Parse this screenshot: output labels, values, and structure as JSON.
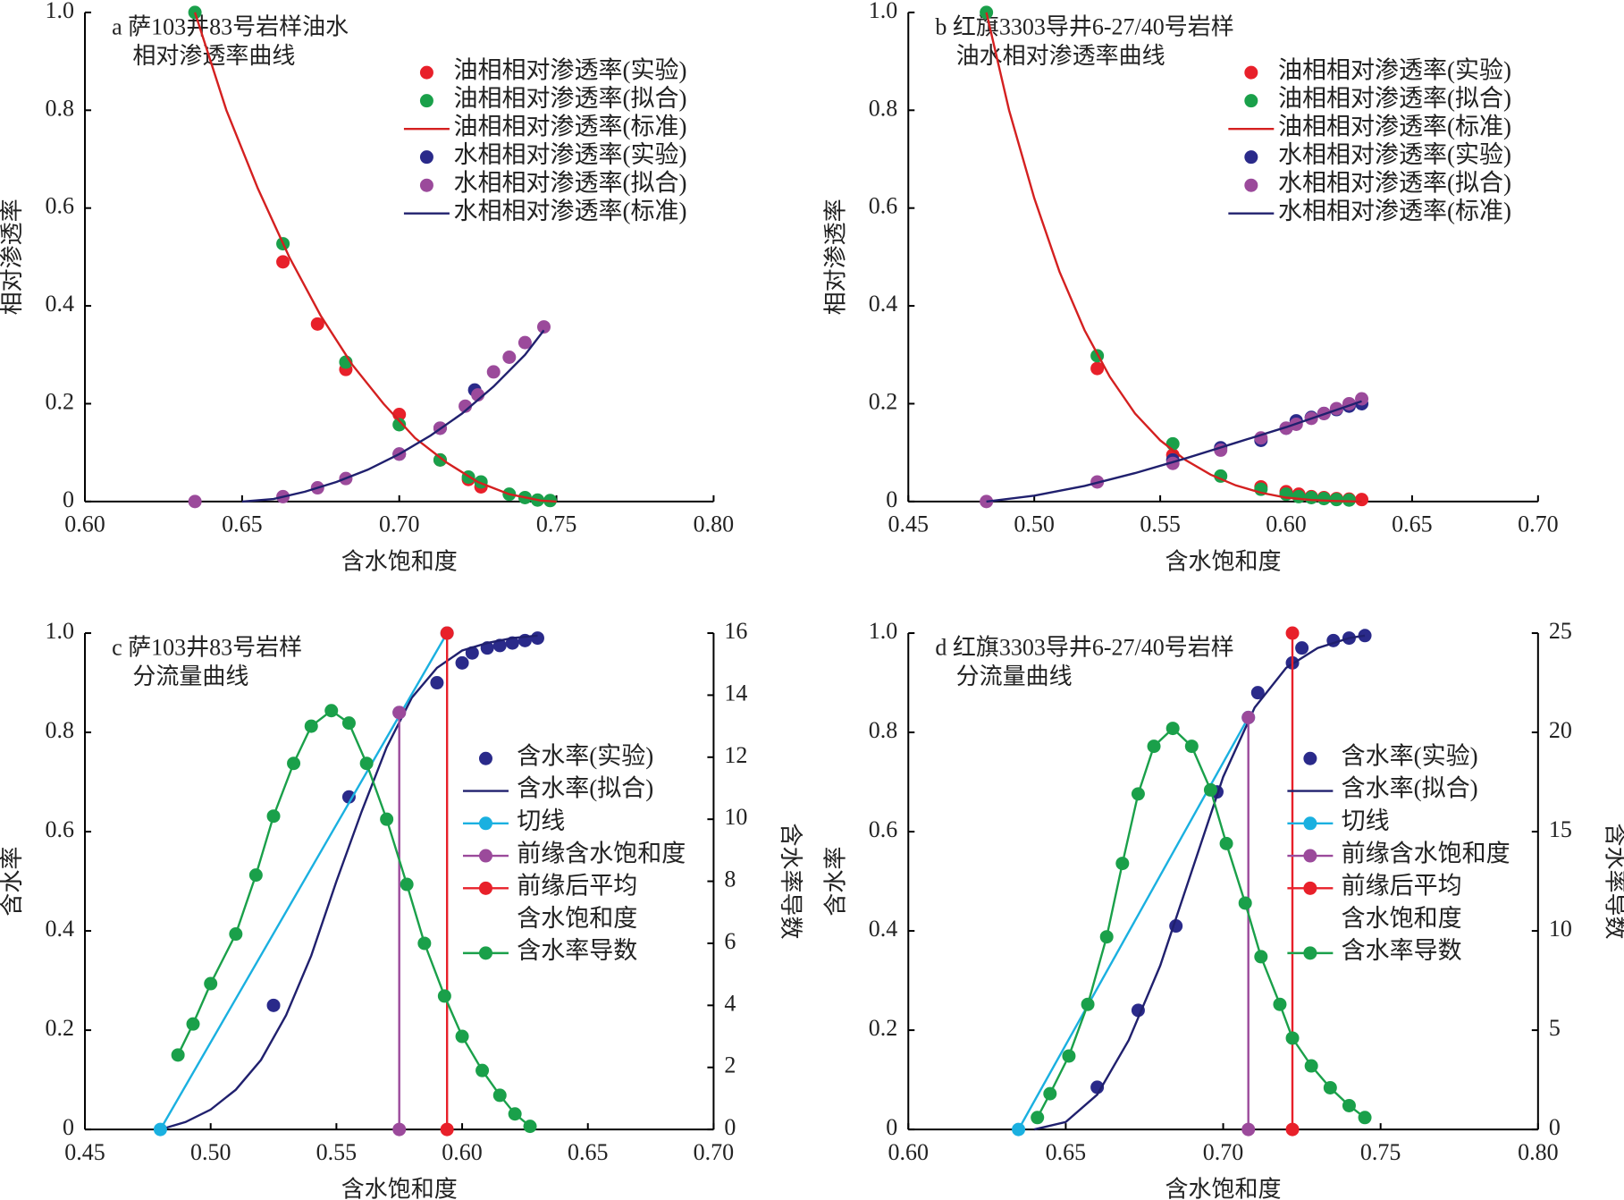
{
  "chart_data": [
    {
      "type": "line",
      "title": [
        "a 萨103井83号岩样油水",
        "相对渗透率曲线"
      ],
      "xlabel": "含水饱和度",
      "ylabel": "相对渗透率",
      "legend": "upper right",
      "xlim": [
        0.6,
        0.8
      ],
      "xticks": [
        {
          "value": 0.6,
          "label": "0.60"
        },
        0.65,
        {
          "value": 0.7,
          "label": "0.70"
        },
        0.75,
        {
          "value": 0.8,
          "label": "0.80"
        }
      ],
      "ylim": [
        0,
        1.0
      ],
      "yticks": [
        0,
        0.2,
        0.4,
        0.6,
        0.8,
        {
          "value": 1.0,
          "label": "1.0"
        }
      ],
      "series": [
        {
          "name": "油相相对渗透率(实验)",
          "color": "#e8202a",
          "marker": true,
          "line": false,
          "x": [
            0.663,
            0.674,
            0.683,
            0.7,
            0.713,
            0.722,
            0.726
          ],
          "values": [
            0.49,
            0.363,
            0.27,
            0.178,
            0.085,
            0.045,
            0.03
          ]
        },
        {
          "name": "油相相对渗透率(拟合)",
          "color": "#1aa04a",
          "marker": true,
          "line": false,
          "x": [
            0.635,
            0.663,
            0.683,
            0.7,
            0.713,
            0.722,
            0.726,
            0.735,
            0.74,
            0.744,
            0.748
          ],
          "values": [
            1.0,
            0.527,
            0.285,
            0.157,
            0.085,
            0.05,
            0.04,
            0.015,
            0.008,
            0.003,
            0.002
          ]
        },
        {
          "name": "油相相对渗透率(标准)",
          "color": "#d42020",
          "marker": false,
          "line": true,
          "x": [
            0.635,
            0.645,
            0.655,
            0.665,
            0.675,
            0.685,
            0.695,
            0.705,
            0.715,
            0.725,
            0.735,
            0.745,
            0.75
          ],
          "values": [
            1.0,
            0.8,
            0.64,
            0.5,
            0.38,
            0.28,
            0.2,
            0.13,
            0.08,
            0.04,
            0.015,
            0.002,
            0
          ]
        },
        {
          "name": "水相相对渗透率(实验)",
          "color": "#2a2a8a",
          "marker": true,
          "line": false,
          "x": [
            0.7,
            0.713,
            0.724
          ],
          "values": [
            0.097,
            0.15,
            0.228
          ]
        },
        {
          "name": "水相相对渗透率(拟合)",
          "color": "#9b4a9b",
          "marker": true,
          "line": false,
          "x": [
            0.635,
            0.663,
            0.674,
            0.683,
            0.7,
            0.713,
            0.721,
            0.725,
            0.73,
            0.735,
            0.74,
            0.746
          ],
          "values": [
            0,
            0.01,
            0.028,
            0.047,
            0.097,
            0.15,
            0.195,
            0.218,
            0.265,
            0.295,
            0.325,
            0.357
          ]
        },
        {
          "name": "水相相对渗透率(标准)",
          "color": "#20206e",
          "marker": false,
          "line": true,
          "x": [
            0.65,
            0.66,
            0.67,
            0.68,
            0.69,
            0.7,
            0.71,
            0.72,
            0.73,
            0.74,
            0.746
          ],
          "values": [
            0,
            0.005,
            0.02,
            0.04,
            0.065,
            0.097,
            0.135,
            0.18,
            0.235,
            0.3,
            0.35
          ]
        }
      ]
    },
    {
      "type": "line",
      "title": [
        "b 红旗3303导井6-27/40号岩样",
        "油水相对渗透率曲线"
      ],
      "xlabel": "含水饱和度",
      "ylabel": "相对渗透率",
      "legend": "upper right",
      "xlim": [
        0.45,
        0.7
      ],
      "xticks": [
        0.45,
        {
          "value": 0.5,
          "label": "0.50"
        },
        0.55,
        {
          "value": 0.6,
          "label": "0.60"
        },
        0.65,
        {
          "value": 0.7,
          "label": "0.70"
        }
      ],
      "ylim": [
        0,
        1.0
      ],
      "yticks": [
        0,
        0.2,
        0.4,
        0.6,
        0.8,
        {
          "value": 1.0,
          "label": "1.0"
        }
      ],
      "series": [
        {
          "name": "油相相对渗透率(实验)",
          "color": "#e8202a",
          "marker": true,
          "line": false,
          "x": [
            0.525,
            0.555,
            0.59,
            0.6,
            0.605,
            0.61,
            0.615,
            0.62,
            0.625,
            0.63
          ],
          "values": [
            0.272,
            0.095,
            0.03,
            0.02,
            0.015,
            0.01,
            0.008,
            0.006,
            0.005,
            0.004
          ]
        },
        {
          "name": "油相相对渗透率(拟合)",
          "color": "#1aa04a",
          "marker": true,
          "line": false,
          "x": [
            0.481,
            0.525,
            0.555,
            0.574,
            0.59,
            0.6,
            0.605,
            0.61,
            0.615,
            0.62,
            0.625
          ],
          "values": [
            1.0,
            0.298,
            0.118,
            0.052,
            0.025,
            0.015,
            0.01,
            0.008,
            0.006,
            0.004,
            0.003
          ]
        },
        {
          "name": "油相相对渗透率(标准)",
          "color": "#d42020",
          "marker": false,
          "line": true,
          "x": [
            0.481,
            0.49,
            0.5,
            0.51,
            0.52,
            0.53,
            0.54,
            0.55,
            0.56,
            0.57,
            0.58,
            0.59,
            0.6,
            0.61,
            0.62,
            0.63
          ],
          "values": [
            1.0,
            0.8,
            0.62,
            0.47,
            0.35,
            0.255,
            0.18,
            0.125,
            0.085,
            0.055,
            0.033,
            0.018,
            0.008,
            0.003,
            0.001,
            0
          ]
        },
        {
          "name": "水相相对渗透率(实验)",
          "color": "#2a2a8a",
          "marker": true,
          "line": false,
          "x": [
            0.555,
            0.574,
            0.59,
            0.6,
            0.604,
            0.61,
            0.615,
            0.62,
            0.625,
            0.63
          ],
          "values": [
            0.085,
            0.11,
            0.125,
            0.15,
            0.165,
            0.172,
            0.18,
            0.188,
            0.195,
            0.2
          ]
        },
        {
          "name": "水相相对渗透率(拟合)",
          "color": "#9b4a9b",
          "marker": true,
          "line": false,
          "x": [
            0.481,
            0.525,
            0.555,
            0.574,
            0.59,
            0.6,
            0.604,
            0.61,
            0.615,
            0.62,
            0.625,
            0.63
          ],
          "values": [
            0,
            0.04,
            0.078,
            0.105,
            0.13,
            0.15,
            0.158,
            0.17,
            0.18,
            0.19,
            0.2,
            0.21
          ]
        },
        {
          "name": "水相相对渗透率(标准)",
          "color": "#20206e",
          "marker": false,
          "line": true,
          "x": [
            0.481,
            0.5,
            0.52,
            0.54,
            0.56,
            0.58,
            0.6,
            0.63
          ],
          "values": [
            0,
            0.012,
            0.032,
            0.058,
            0.088,
            0.12,
            0.152,
            0.205
          ]
        }
      ]
    },
    {
      "type": "line",
      "title": [
        "c 萨103井83号岩样",
        "分流量曲线"
      ],
      "xlabel": "含水饱和度",
      "ylabel": "含水率",
      "y2label": "含水率导数",
      "legend": "right",
      "xlim": [
        0.45,
        0.7
      ],
      "xticks": [
        0.45,
        {
          "value": 0.5,
          "label": "0.50"
        },
        0.55,
        {
          "value": 0.6,
          "label": "0.60"
        },
        0.65,
        {
          "value": 0.7,
          "label": "0.70"
        }
      ],
      "ylim": [
        0,
        1.0
      ],
      "yticks": [
        0,
        0.2,
        0.4,
        0.6,
        0.8,
        {
          "value": 1.0,
          "label": "1.0"
        }
      ],
      "y2lim": [
        0,
        16
      ],
      "y2ticks": [
        0,
        2,
        4,
        6,
        8,
        10,
        12,
        14,
        16
      ],
      "series": [
        {
          "name": "含水率(实验)",
          "color": "#2a2a8a",
          "marker": true,
          "line": false,
          "x": [
            0.525,
            0.555,
            0.575,
            0.59,
            0.6,
            0.604,
            0.61,
            0.615,
            0.62,
            0.625,
            0.63
          ],
          "values": [
            0.25,
            0.67,
            0.84,
            0.9,
            0.94,
            0.96,
            0.97,
            0.975,
            0.98,
            0.985,
            0.99
          ]
        },
        {
          "name": "含水率(拟合)",
          "color": "#20206e",
          "marker": false,
          "line": true,
          "x": [
            0.48,
            0.49,
            0.5,
            0.51,
            0.52,
            0.53,
            0.54,
            0.55,
            0.56,
            0.57,
            0.58,
            0.59,
            0.6,
            0.61,
            0.62,
            0.63
          ],
          "values": [
            0,
            0.015,
            0.04,
            0.08,
            0.14,
            0.23,
            0.35,
            0.5,
            0.64,
            0.77,
            0.87,
            0.93,
            0.965,
            0.98,
            0.99,
            0.995
          ]
        },
        {
          "name": "切线",
          "color": "#1ab0e0",
          "marker": true,
          "line": true,
          "x": [
            0.48,
            0.594
          ],
          "values": [
            0,
            1.0
          ]
        },
        {
          "name": "前缘含水饱和度",
          "color": "#9b4a9b",
          "marker": true,
          "line": true,
          "x": [
            0.575,
            0.575
          ],
          "values": [
            0,
            0.84
          ]
        },
        {
          "name": [
            "前缘后平均",
            "含水饱和度"
          ],
          "color": "#e8202a",
          "marker": true,
          "line": true,
          "x": [
            0.594,
            0.594
          ],
          "values": [
            0,
            1.0
          ]
        },
        {
          "name": "含水率导数",
          "color": "#1aa04a",
          "marker": true,
          "line": true,
          "axis": "y2",
          "x": [
            0.487,
            0.493,
            0.5,
            0.51,
            0.518,
            0.525,
            0.533,
            0.54,
            0.548,
            0.555,
            0.562,
            0.57,
            0.578,
            0.585,
            0.593,
            0.6,
            0.608,
            0.615,
            0.621,
            0.627
          ],
          "values": [
            2.4,
            3.4,
            4.7,
            6.3,
            8.2,
            10.1,
            11.8,
            13.0,
            13.5,
            13.1,
            11.8,
            10.0,
            7.9,
            6.0,
            4.3,
            3.0,
            1.9,
            1.1,
            0.5,
            0.1
          ]
        }
      ]
    },
    {
      "type": "line",
      "title": [
        "d 红旗3303导井6-27/40号岩样",
        "分流量曲线"
      ],
      "xlabel": "含水饱和度",
      "ylabel": "含水率",
      "y2label": "含水率导数",
      "legend": "right",
      "xlim": [
        0.6,
        0.8
      ],
      "xticks": [
        {
          "value": 0.6,
          "label": "0.60"
        },
        0.65,
        {
          "value": 0.7,
          "label": "0.70"
        },
        0.75,
        {
          "value": 0.8,
          "label": "0.80"
        }
      ],
      "ylim": [
        0,
        1.0
      ],
      "yticks": [
        0,
        0.2,
        0.4,
        0.6,
        0.8,
        {
          "value": 1.0,
          "label": "1.0"
        }
      ],
      "y2lim": [
        0,
        25
      ],
      "y2ticks": [
        0,
        5,
        10,
        15,
        20,
        25
      ],
      "series": [
        {
          "name": "含水率(实验)",
          "color": "#2a2a8a",
          "marker": true,
          "line": false,
          "x": [
            0.66,
            0.673,
            0.685,
            0.698,
            0.711,
            0.722,
            0.725,
            0.735,
            0.74,
            0.745
          ],
          "values": [
            0.085,
            0.24,
            0.41,
            0.68,
            0.88,
            0.94,
            0.97,
            0.985,
            0.99,
            0.995
          ]
        },
        {
          "name": "含水率(拟合)",
          "color": "#20206e",
          "marker": false,
          "line": true,
          "x": [
            0.64,
            0.65,
            0.66,
            0.67,
            0.68,
            0.69,
            0.7,
            0.71,
            0.72,
            0.73,
            0.74,
            0.745
          ],
          "values": [
            0,
            0.015,
            0.07,
            0.18,
            0.33,
            0.52,
            0.71,
            0.85,
            0.93,
            0.97,
            0.99,
            0.995
          ]
        },
        {
          "name": "切线",
          "color": "#1ab0e0",
          "marker": true,
          "line": true,
          "x": [
            0.635,
            0.708
          ],
          "values": [
            0,
            0.83
          ]
        },
        {
          "name": "前缘含水饱和度",
          "color": "#9b4a9b",
          "marker": true,
          "line": true,
          "x": [
            0.708,
            0.708
          ],
          "values": [
            0,
            0.83
          ]
        },
        {
          "name": [
            "前缘后平均",
            "含水饱和度"
          ],
          "color": "#e8202a",
          "marker": true,
          "line": true,
          "x": [
            0.722,
            0.722
          ],
          "values": [
            0,
            1.0
          ]
        },
        {
          "name": "含水率导数",
          "color": "#1aa04a",
          "marker": true,
          "line": true,
          "axis": "y2",
          "x": [
            0.641,
            0.645,
            0.651,
            0.657,
            0.663,
            0.668,
            0.673,
            0.678,
            0.684,
            0.69,
            0.696,
            0.701,
            0.707,
            0.712,
            0.718,
            0.722,
            0.728,
            0.734,
            0.74,
            0.745
          ],
          "values": [
            0.6,
            1.8,
            3.7,
            6.3,
            9.7,
            13.4,
            16.9,
            19.3,
            20.2,
            19.3,
            17.1,
            14.4,
            11.4,
            8.7,
            6.3,
            4.6,
            3.2,
            2.1,
            1.2,
            0.6
          ]
        }
      ]
    }
  ]
}
